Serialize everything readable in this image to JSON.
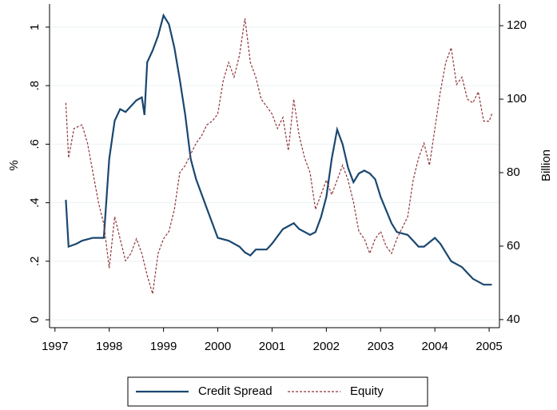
{
  "chart_data": {
    "type": "line",
    "y_label": "%",
    "y2_label": "Billion",
    "xlim": [
      1996.9,
      2005.19
    ],
    "xticks": [
      1997,
      1998,
      1999,
      2000,
      2001,
      2002,
      2003,
      2004,
      2005
    ],
    "ylim": [
      -0.027,
      1.079
    ],
    "yticks": [
      0,
      {
        "value": 0.2,
        "label": ".2"
      },
      {
        "value": 0.4,
        "label": ".4"
      },
      {
        "value": 0.6,
        "label": ".6"
      },
      {
        "value": 0.8,
        "label": ".8"
      },
      1
    ],
    "y2lim": [
      37.8,
      125.9
    ],
    "y2ticks": [
      40,
      60,
      80,
      100,
      120
    ],
    "grid": true,
    "legend": "bottom",
    "series": [
      {
        "name": "Credit Spread",
        "color": "#1a476f",
        "line_style": "solid",
        "x": [
          1997.2,
          1997.25,
          1997.4,
          1997.5,
          1997.7,
          1997.9,
          1998.0,
          1998.1,
          1998.2,
          1998.3,
          1998.4,
          1998.5,
          1998.6,
          1998.65,
          1998.7,
          1998.8,
          1998.9,
          1999.0,
          1999.1,
          1999.2,
          1999.3,
          1999.4,
          1999.5,
          1999.6,
          1999.7,
          1999.8,
          1999.9,
          2000.0,
          2000.2,
          2000.4,
          2000.5,
          2000.6,
          2000.7,
          2000.9,
          2001.0,
          2001.2,
          2001.4,
          2001.5,
          2001.7,
          2001.8,
          2001.9,
          2002.0,
          2002.1,
          2002.2,
          2002.3,
          2002.4,
          2002.5,
          2002.6,
          2002.7,
          2002.8,
          2002.9,
          2003.0,
          2003.2,
          2003.3,
          2003.5,
          2003.7,
          2003.8,
          2004.0,
          2004.1,
          2004.2,
          2004.3,
          2004.5,
          2004.7,
          2004.9,
          2005.05
        ],
        "values": [
          0.41,
          0.25,
          0.26,
          0.27,
          0.28,
          0.28,
          0.55,
          0.68,
          0.72,
          0.71,
          0.73,
          0.75,
          0.76,
          0.7,
          0.88,
          0.92,
          0.97,
          1.04,
          1.01,
          0.93,
          0.82,
          0.7,
          0.55,
          0.48,
          0.43,
          0.38,
          0.33,
          0.28,
          0.27,
          0.25,
          0.23,
          0.22,
          0.24,
          0.24,
          0.26,
          0.31,
          0.33,
          0.31,
          0.29,
          0.3,
          0.35,
          0.42,
          0.55,
          0.65,
          0.6,
          0.52,
          0.47,
          0.5,
          0.51,
          0.5,
          0.48,
          0.42,
          0.33,
          0.3,
          0.29,
          0.25,
          0.25,
          0.28,
          0.26,
          0.23,
          0.2,
          0.18,
          0.14,
          0.12,
          0.12
        ]
      },
      {
        "name": "Equity",
        "color": "#90353b",
        "line_style": "dashed",
        "axis": "y2",
        "x": [
          1997.2,
          1997.25,
          1997.35,
          1997.5,
          1997.6,
          1997.7,
          1997.8,
          1997.9,
          1998.0,
          1998.1,
          1998.2,
          1998.3,
          1998.4,
          1998.5,
          1998.6,
          1998.7,
          1998.8,
          1998.9,
          1999.0,
          1999.1,
          1999.2,
          1999.3,
          1999.4,
          1999.5,
          1999.6,
          1999.7,
          1999.8,
          1999.9,
          2000.0,
          2000.1,
          2000.2,
          2000.3,
          2000.4,
          2000.5,
          2000.6,
          2000.7,
          2000.8,
          2000.9,
          2001.0,
          2001.1,
          2001.2,
          2001.3,
          2001.4,
          2001.5,
          2001.6,
          2001.7,
          2001.8,
          2001.9,
          2002.0,
          2002.1,
          2002.2,
          2002.3,
          2002.4,
          2002.5,
          2002.6,
          2002.7,
          2002.8,
          2002.9,
          2003.0,
          2003.1,
          2003.2,
          2003.3,
          2003.5,
          2003.6,
          2003.7,
          2003.8,
          2003.9,
          2004.0,
          2004.1,
          2004.2,
          2004.3,
          2004.4,
          2004.5,
          2004.6,
          2004.7,
          2004.8,
          2004.9,
          2005.0,
          2005.05
        ],
        "values": [
          99,
          84,
          92,
          93,
          88,
          80,
          72,
          66,
          54,
          68,
          62,
          56,
          58,
          62,
          58,
          52,
          47,
          58,
          62,
          64,
          70,
          80,
          82,
          85,
          88,
          90,
          93,
          94,
          96,
          105,
          110,
          106,
          112,
          122,
          110,
          106,
          100,
          98,
          96,
          92,
          95,
          86,
          100,
          90,
          84,
          80,
          70,
          74,
          78,
          74,
          78,
          82,
          78,
          72,
          64,
          62,
          58,
          62,
          64,
          60,
          58,
          62,
          68,
          78,
          84,
          88,
          82,
          92,
          102,
          110,
          114,
          104,
          106,
          100,
          99,
          102,
          94,
          94,
          96
        ]
      }
    ]
  }
}
